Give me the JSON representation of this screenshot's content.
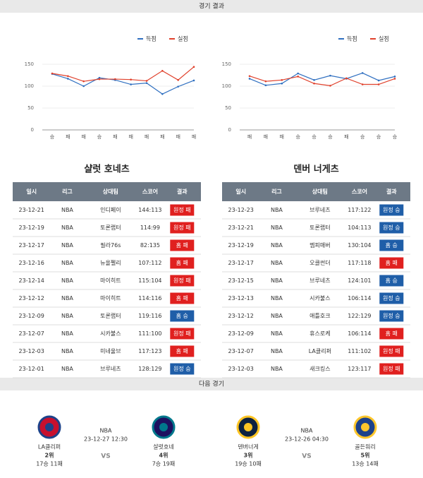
{
  "header": {
    "title": "경기 결과"
  },
  "chart_data": [
    {
      "type": "line",
      "categories": [
        "승",
        "패",
        "패",
        "승",
        "패",
        "패",
        "패",
        "패",
        "패",
        "패"
      ],
      "series": [
        {
          "name": "득점",
          "color": "#2f6fc0",
          "values": [
            128,
            117,
            100,
            119,
            114,
            104,
            107,
            82,
            99,
            113
          ]
        },
        {
          "name": "실점",
          "color": "#e0412c",
          "values": [
            129,
            123,
            111,
            116,
            116,
            115,
            112,
            135,
            114,
            144
          ]
        }
      ],
      "ylim": [
        0,
        150
      ],
      "yticks": [
        0,
        50,
        100,
        150
      ],
      "grid": true,
      "legend": "top-right"
    },
    {
      "type": "line",
      "categories": [
        "패",
        "패",
        "패",
        "승",
        "승",
        "승",
        "패",
        "승",
        "승",
        "승"
      ],
      "series": [
        {
          "name": "득점",
          "color": "#2f6fc0",
          "values": [
            117,
            102,
            106,
            129,
            114,
            124,
            117,
            130,
            113,
            122
          ]
        },
        {
          "name": "실점",
          "color": "#e0412c",
          "values": [
            123,
            111,
            114,
            122,
            106,
            101,
            118,
            104,
            104,
            117
          ]
        }
      ],
      "ylim": [
        0,
        150
      ],
      "yticks": [
        0,
        50,
        100,
        150
      ],
      "grid": true,
      "legend": "top-right"
    }
  ],
  "tables": [
    {
      "team": "샬럿 호네츠",
      "columns": [
        "일시",
        "리그",
        "상대팀",
        "스코어",
        "결과"
      ],
      "rows": [
        [
          "23-12-21",
          "NBA",
          "인디페이",
          "144:113",
          "원정 패"
        ],
        [
          "23-12-19",
          "NBA",
          "토론랩터",
          "114:99",
          "원정 패"
        ],
        [
          "23-12-17",
          "NBA",
          "필라76s",
          "82:135",
          "홈 패"
        ],
        [
          "23-12-16",
          "NBA",
          "뉴올펠리",
          "107:112",
          "홈 패"
        ],
        [
          "23-12-14",
          "NBA",
          "마이히트",
          "115:104",
          "원정 패"
        ],
        [
          "23-12-12",
          "NBA",
          "마이히트",
          "114:116",
          "홈 패"
        ],
        [
          "23-12-09",
          "NBA",
          "토론랩터",
          "119:116",
          "홈 승"
        ],
        [
          "23-12-07",
          "NBA",
          "시카불스",
          "111:100",
          "원정 패"
        ],
        [
          "23-12-03",
          "NBA",
          "미네울브",
          "117:123",
          "홈 패"
        ],
        [
          "23-12-01",
          "NBA",
          "브루네츠",
          "128:129",
          "원정 승"
        ]
      ]
    },
    {
      "team": "덴버 너게츠",
      "columns": [
        "일시",
        "리그",
        "상대팀",
        "스코어",
        "결과"
      ],
      "rows": [
        [
          "23-12-23",
          "NBA",
          "브루네츠",
          "117:122",
          "원정 승"
        ],
        [
          "23-12-21",
          "NBA",
          "토론랩터",
          "104:113",
          "원정 승"
        ],
        [
          "23-12-19",
          "NBA",
          "멤피매버",
          "130:104",
          "홈 승"
        ],
        [
          "23-12-17",
          "NBA",
          "오클썬더",
          "117:118",
          "홈 패"
        ],
        [
          "23-12-15",
          "NBA",
          "브루네츠",
          "124:101",
          "홈 승"
        ],
        [
          "23-12-13",
          "NBA",
          "시카불스",
          "106:114",
          "원정 승"
        ],
        [
          "23-12-12",
          "NBA",
          "애틀호크",
          "122:129",
          "원정 승"
        ],
        [
          "23-12-09",
          "NBA",
          "휴스로케",
          "106:114",
          "홈 패"
        ],
        [
          "23-12-07",
          "NBA",
          "LA클리퍼",
          "111:102",
          "원정 패"
        ],
        [
          "23-12-03",
          "NBA",
          "새크킹스",
          "123:117",
          "원정 패"
        ]
      ]
    }
  ],
  "next_game": {
    "title": "다음 경기",
    "matches": [
      {
        "home": {
          "name": "LA클리퍼",
          "rank": "2위",
          "record": "17승 11패"
        },
        "league": "NBA",
        "time": "23-12-27 12:30",
        "vs": "VS",
        "away": {
          "name": "샬럿호네",
          "rank": "4위",
          "record": "7승 19패"
        }
      },
      {
        "home": {
          "name": "덴버너게",
          "rank": "3위",
          "record": "19승 10패"
        },
        "league": "NBA",
        "time": "23-12-26 04:30",
        "vs": "VS",
        "away": {
          "name": "골든워리",
          "rank": "5위",
          "record": "13승 14패"
        }
      }
    ]
  }
}
